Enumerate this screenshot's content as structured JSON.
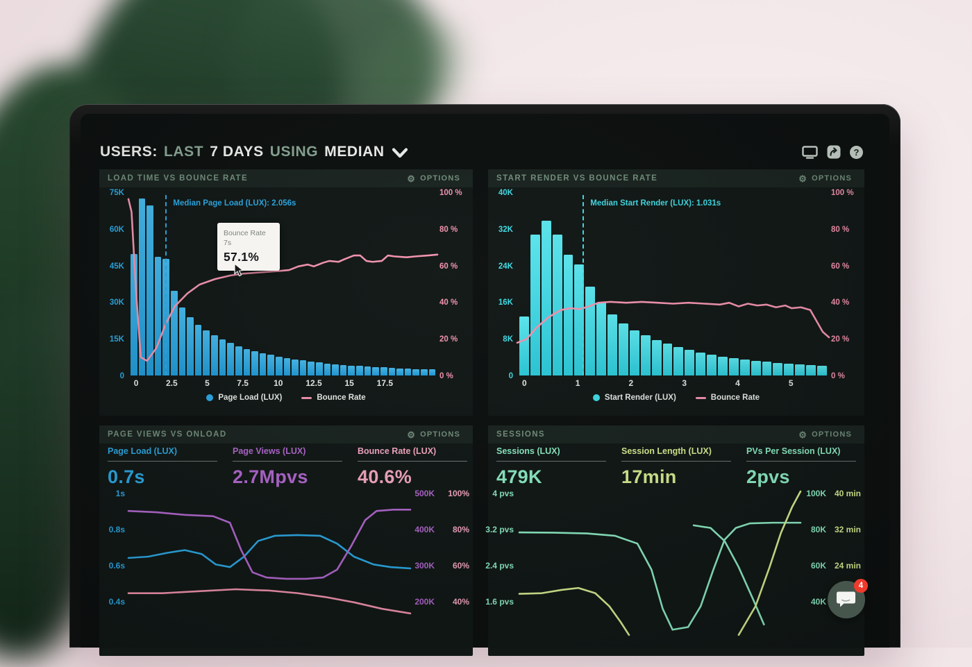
{
  "header": {
    "title_parts": [
      "USERS:",
      "LAST",
      "7 DAYS",
      "USING",
      "MEDIAN"
    ],
    "accent_flags": [
      false,
      true,
      false,
      true,
      false
    ]
  },
  "toolbar": {
    "icons": [
      "monitor-icon",
      "share-icon",
      "help-icon"
    ],
    "help_glyph": "?"
  },
  "labels": {
    "options": "OPTIONS"
  },
  "colors": {
    "blue": "#2ba9e6",
    "cyan": "#40dee8",
    "pink": "#f494b0",
    "purple": "#b368d1",
    "mint": "#8deec6",
    "lime": "#d9f092",
    "pinkMetric": "#f8a9c4",
    "white": "#eef1ee",
    "sage": "#8aa796",
    "badge_red": "#f03a2c"
  },
  "chat": {
    "badge": "4"
  },
  "panels": [
    {
      "title": "LOAD TIME VS BOUNCE RATE",
      "median_label": "Median Page Load (LUX): 2.056s",
      "tooltip": {
        "series": "Bounce Rate",
        "x": "7s",
        "value": "57.1%"
      },
      "legend": [
        {
          "marker": "dot",
          "color": "blue",
          "label": "Page Load (LUX)"
        },
        {
          "marker": "dash",
          "color": "pink",
          "label": "Bounce Rate"
        }
      ]
    },
    {
      "title": "START RENDER VS BOUNCE RATE",
      "median_label": "Median Start Render (LUX): 1.031s",
      "legend": [
        {
          "marker": "dot",
          "color": "cyan",
          "label": "Start Render (LUX)"
        },
        {
          "marker": "dash",
          "color": "pink",
          "label": "Bounce Rate"
        }
      ]
    },
    {
      "title": "PAGE VIEWS VS ONLOAD",
      "metrics": [
        {
          "label": "Page Load (LUX)",
          "value": "0.7s",
          "color": "blue"
        },
        {
          "label": "Page Views (LUX)",
          "value": "2.7Mpvs",
          "color": "purple"
        },
        {
          "label": "Bounce Rate (LUX)",
          "value": "40.6%",
          "color": "pinkMetric"
        }
      ]
    },
    {
      "title": "SESSIONS",
      "metrics": [
        {
          "label": "Sessions (LUX)",
          "value": "479K",
          "color": "mint"
        },
        {
          "label": "Session Length (LUX)",
          "value": "17min",
          "color": "lime"
        },
        {
          "label": "PVs Per Session (LUX)",
          "value": "2pvs",
          "color": "mint"
        }
      ]
    }
  ],
  "chart_data": [
    {
      "type": "bar",
      "title": "LOAD TIME VS BOUNCE RATE",
      "y_left_ticks": [
        "75K",
        "60K",
        "45K",
        "30K",
        "15K",
        "0"
      ],
      "y_right_ticks": [
        "100 %",
        "80 %",
        "60 %",
        "40 %",
        "20 %",
        "0 %"
      ],
      "x_ticks": [
        "0",
        "2.5",
        "5",
        "7.5",
        "10",
        "12.5",
        "15",
        "17.5"
      ],
      "x_tick_pos_pct": [
        2.5,
        14,
        25.5,
        37,
        48.5,
        60,
        71.5,
        83
      ],
      "axis_color": "blue",
      "bar_series": {
        "name": "Page Load (LUX)",
        "x_start": 0,
        "x_step_s": 0.5,
        "y_max_k": 75,
        "values_k": [
          50,
          73,
          70,
          49,
          48,
          35,
          28,
          24,
          21,
          18.5,
          16.5,
          15,
          13.5,
          12,
          11,
          10,
          9.2,
          8.5,
          7.8,
          7.2,
          6.7,
          6.2,
          5.8,
          5.4,
          5,
          4.7,
          4.4,
          4.1,
          3.9,
          3.7,
          3.5,
          3.3,
          3.1,
          3,
          2.8,
          2.7,
          2.6,
          2.5
        ]
      },
      "line_series": {
        "name": "Bounce Rate",
        "color": "pink",
        "y_max_pct": 100,
        "points": [
          [
            0,
            97
          ],
          [
            1,
            90
          ],
          [
            2.5,
            45
          ],
          [
            4,
            10
          ],
          [
            6,
            8
          ],
          [
            9,
            15
          ],
          [
            12,
            28
          ],
          [
            15,
            38
          ],
          [
            19,
            45
          ],
          [
            23,
            50
          ],
          [
            28,
            53
          ],
          [
            33,
            55
          ],
          [
            37,
            56
          ],
          [
            41,
            56.5
          ],
          [
            45,
            57
          ],
          [
            49,
            57.5
          ],
          [
            52,
            58
          ],
          [
            55,
            60
          ],
          [
            58,
            61
          ],
          [
            60,
            60
          ],
          [
            63,
            62
          ],
          [
            65,
            63
          ],
          [
            68,
            62.5
          ],
          [
            70,
            64
          ],
          [
            73,
            66
          ],
          [
            75,
            66
          ],
          [
            77,
            63
          ],
          [
            79,
            62.5
          ],
          [
            82,
            63
          ],
          [
            84,
            66
          ],
          [
            86,
            65.5
          ],
          [
            90,
            65
          ],
          [
            93,
            65.5
          ],
          [
            97,
            66
          ],
          [
            100,
            66.5
          ]
        ]
      },
      "median": {
        "label": "Median Page Load (LUX): 2.056s",
        "x_pct": 12
      },
      "tooltip": {
        "series": "Bounce Rate",
        "x": "7s",
        "value": "57.1%"
      }
    },
    {
      "type": "bar",
      "title": "START RENDER VS BOUNCE RATE",
      "y_left_ticks": [
        "40K",
        "32K",
        "24K",
        "16K",
        "8K",
        "0"
      ],
      "y_right_ticks": [
        "100 %",
        "80 %",
        "60 %",
        "40 %",
        "20 %",
        "0 %"
      ],
      "x_ticks": [
        "0",
        "1",
        "2",
        "3",
        "4",
        "5"
      ],
      "x_tick_pos_pct": [
        2.3,
        19.4,
        36.5,
        53.6,
        70.7,
        87.8
      ],
      "axis_color": "cyan",
      "bar_series": {
        "name": "Start Render (LUX)",
        "x_start": 0,
        "x_step_s": 0.18,
        "y_max_k": 40,
        "values_k": [
          13,
          31,
          34,
          31,
          26.5,
          24.5,
          19.5,
          16,
          13.5,
          11.5,
          10,
          8.8,
          7.8,
          7,
          6.2,
          5.6,
          5,
          4.6,
          4.2,
          3.8,
          3.5,
          3.2,
          3,
          2.8,
          2.6,
          2.4,
          2.3,
          2.2
        ]
      },
      "line_series": {
        "name": "Bounce Rate",
        "color": "pink",
        "y_max_pct": 100,
        "points": [
          [
            0,
            18
          ],
          [
            3,
            20
          ],
          [
            6,
            26
          ],
          [
            10,
            32
          ],
          [
            14,
            36
          ],
          [
            17,
            37
          ],
          [
            20,
            36.5
          ],
          [
            23,
            38
          ],
          [
            26,
            40
          ],
          [
            30,
            40.5
          ],
          [
            35,
            40
          ],
          [
            40,
            40.5
          ],
          [
            45,
            40
          ],
          [
            50,
            39.5
          ],
          [
            55,
            40
          ],
          [
            60,
            39.5
          ],
          [
            65,
            39
          ],
          [
            68,
            40
          ],
          [
            71,
            38
          ],
          [
            74,
            39.5
          ],
          [
            77,
            38.5
          ],
          [
            80,
            39
          ],
          [
            83,
            37.5
          ],
          [
            86,
            38.5
          ],
          [
            88,
            37
          ],
          [
            91,
            37.5
          ],
          [
            94,
            36
          ],
          [
            96,
            30
          ],
          [
            98,
            24
          ],
          [
            100,
            21
          ]
        ]
      },
      "median": {
        "label": "Median Start Render (LUX): 1.031s",
        "x_pct": 21
      }
    },
    {
      "type": "line",
      "title": "PAGE VIEWS VS ONLOAD",
      "y_left_ticks": [
        "1s",
        "0.8s",
        "0.6s",
        "0.4s"
      ],
      "y_left_color": "blue",
      "y_right_cols": [
        {
          "color": "purple",
          "ticks": [
            "500K",
            "400K",
            "300K",
            "200K"
          ]
        },
        {
          "color": "pinkMetric",
          "ticks": [
            "100%",
            "80%",
            "60%",
            "40%"
          ]
        }
      ],
      "series": [
        {
          "name": "Page Load (LUX)",
          "color": "blue",
          "points": [
            [
              0,
              49
            ],
            [
              7,
              50
            ],
            [
              14,
              53
            ],
            [
              20,
              55
            ],
            [
              26,
              52
            ],
            [
              31,
              44
            ],
            [
              36,
              42
            ],
            [
              41,
              50
            ],
            [
              46,
              62
            ],
            [
              52,
              66
            ],
            [
              60,
              66.5
            ],
            [
              68,
              66
            ],
            [
              74,
              60
            ],
            [
              80,
              50
            ],
            [
              87,
              44
            ],
            [
              93,
              42
            ],
            [
              100,
              41
            ]
          ]
        },
        {
          "name": "Page Views (LUX)",
          "color": "purple",
          "points": [
            [
              0,
              85
            ],
            [
              10,
              84
            ],
            [
              20,
              82
            ],
            [
              30,
              81
            ],
            [
              36,
              76
            ],
            [
              40,
              55
            ],
            [
              44,
              38
            ],
            [
              49,
              34
            ],
            [
              56,
              33
            ],
            [
              63,
              33
            ],
            [
              69,
              34
            ],
            [
              74,
              40
            ],
            [
              79,
              58
            ],
            [
              84,
              78
            ],
            [
              88,
              85
            ],
            [
              94,
              86
            ],
            [
              100,
              86
            ]
          ]
        },
        {
          "name": "Bounce Rate (LUX)",
          "color": "pink",
          "points": [
            [
              0,
              22
            ],
            [
              12,
              22
            ],
            [
              25,
              23.5
            ],
            [
              38,
              25
            ],
            [
              50,
              24
            ],
            [
              60,
              22
            ],
            [
              70,
              19
            ],
            [
              80,
              15
            ],
            [
              90,
              10
            ],
            [
              100,
              6.5
            ]
          ]
        }
      ]
    },
    {
      "type": "line",
      "title": "SESSIONS",
      "y_left_ticks": [
        "4 pvs",
        "3.2 pvs",
        "2.4 pvs",
        "1.6 pvs"
      ],
      "y_left_color": "mint",
      "y_right_cols": [
        {
          "color": "mint",
          "ticks": [
            "100K",
            "80K",
            "60K",
            "40K"
          ]
        },
        {
          "color": "lime",
          "ticks": [
            "40 min",
            "32 min",
            "24 min",
            ""
          ]
        }
      ],
      "series": [
        {
          "name": "PVs Per Session (LUX)",
          "color": "mint",
          "points": [
            [
              0,
              68.6
            ],
            [
              12,
              68.4
            ],
            [
              24,
              67.8
            ],
            [
              34,
              66
            ],
            [
              42,
              60
            ],
            [
              47,
              40
            ],
            [
              51,
              10
            ],
            [
              54.5,
              -6
            ],
            [
              60,
              -4
            ],
            [
              64.5,
              12
            ],
            [
              69,
              40
            ],
            [
              73,
              63
            ],
            [
              77,
              72
            ],
            [
              82,
              75.5
            ],
            [
              90,
              76
            ],
            [
              100,
              76
            ]
          ]
        },
        {
          "name": "Sessions (LUX)",
          "color": "mint",
          "points": [
            [
              62,
              74
            ],
            [
              68,
              72
            ],
            [
              73,
              62
            ],
            [
              78,
              42
            ],
            [
              83,
              18
            ],
            [
              87,
              -2
            ]
          ]
        },
        {
          "name": "Session Length (LUX)",
          "color": "lime",
          "points": [
            [
              0,
              21.5
            ],
            [
              8,
              22
            ],
            [
              15,
              24.5
            ],
            [
              21,
              26
            ],
            [
              27,
              22
            ],
            [
              32,
              12
            ],
            [
              36,
              0
            ],
            [
              39,
              -10
            ]
          ]
        },
        {
          "name": "Session Length (LUX)",
          "color": "lime",
          "points": [
            [
              78,
              -10
            ],
            [
              84,
              12
            ],
            [
              89,
              42
            ],
            [
              93,
              68
            ],
            [
              97,
              88
            ],
            [
              100,
              100
            ]
          ]
        }
      ]
    }
  ]
}
